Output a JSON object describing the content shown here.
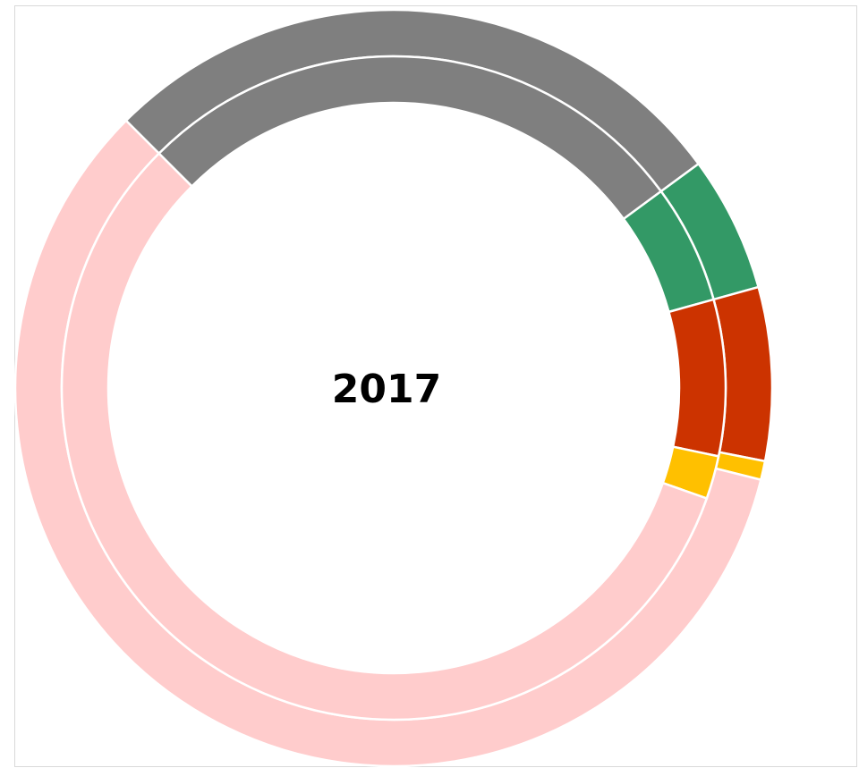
{
  "chart_data": {
    "type": "doughnut",
    "title": "2017",
    "categories": [
      null,
      null,
      null,
      null,
      null
    ],
    "colors": [
      "#7f7f7f",
      "#339966",
      "#cc3300",
      "#ffc000",
      "#ffcccc"
    ],
    "series": [
      {
        "values": [
          27.4,
          5.8,
          7.4,
          0.8,
          58.6
        ]
      },
      {
        "values": [
          27.4,
          5.8,
          7.6,
          2.1,
          57.1
        ]
      }
    ]
  }
}
